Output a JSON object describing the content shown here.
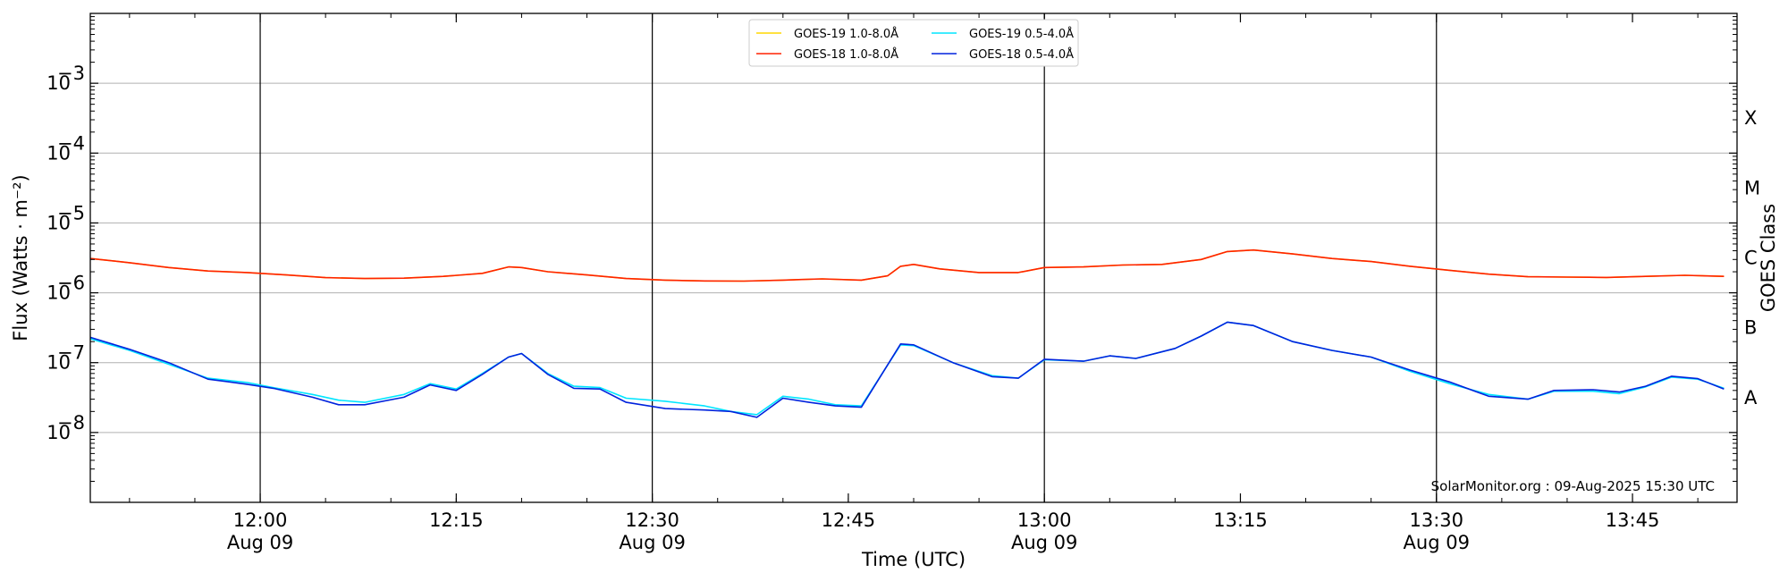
{
  "chart_data": {
    "type": "line",
    "xlabel": "Time (UTC)",
    "ylabel": "Flux (Watts · m⁻²)",
    "right_label": "GOES Class",
    "y_scale": "log",
    "ylim": [
      1e-09,
      0.01
    ],
    "xlim": [
      "11:47",
      "13:53"
    ],
    "grid": "horizontal",
    "legend_position": "top-center",
    "credit": "SolarMonitor.org : 09-Aug-2025 15:30 UTC",
    "x_ticks": [
      {
        "time": "12:00",
        "label": "12:00",
        "sublabel": "Aug 09",
        "major": true
      },
      {
        "time": "12:15",
        "label": "12:15",
        "sublabel": "",
        "major": false
      },
      {
        "time": "12:30",
        "label": "12:30",
        "sublabel": "Aug 09",
        "major": true
      },
      {
        "time": "12:45",
        "label": "12:45",
        "sublabel": "",
        "major": false
      },
      {
        "time": "13:00",
        "label": "13:00",
        "sublabel": "Aug 09",
        "major": true
      },
      {
        "time": "13:15",
        "label": "13:15",
        "sublabel": "",
        "major": false
      },
      {
        "time": "13:30",
        "label": "13:30",
        "sublabel": "Aug 09",
        "major": true
      },
      {
        "time": "13:45",
        "label": "13:45",
        "sublabel": "",
        "major": false
      }
    ],
    "y_ticks": [
      {
        "value": 1e-08,
        "base": "10",
        "exp": "−8"
      },
      {
        "value": 1e-07,
        "base": "10",
        "exp": "−7"
      },
      {
        "value": 1e-06,
        "base": "10",
        "exp": "−6"
      },
      {
        "value": 1e-05,
        "base": "10",
        "exp": "−5"
      },
      {
        "value": 0.0001,
        "base": "10",
        "exp": "−4"
      },
      {
        "value": 0.001,
        "base": "10",
        "exp": "−3"
      }
    ],
    "class_labels": [
      {
        "label": "A",
        "value": 3.16e-08
      },
      {
        "label": "B",
        "value": 3.16e-07
      },
      {
        "label": "C",
        "value": 3.16e-06
      },
      {
        "label": "M",
        "value": 3.16e-05
      },
      {
        "label": "X",
        "value": 0.000316
      }
    ],
    "legend": [
      {
        "name": "GOES-19 1.0-8.0Å",
        "color": "#ffd700"
      },
      {
        "name": "GOES-19 0.5-4.0Å",
        "color": "#00e5ff"
      },
      {
        "name": "GOES-18 1.0-8.0Å",
        "color": "#ff2200"
      },
      {
        "name": "GOES-18 0.5-4.0Å",
        "color": "#0022dd"
      }
    ],
    "series": [
      {
        "name": "GOES-19 1.0-8.0Å",
        "color": "#ffd700",
        "points": [
          [
            "11:47",
            3.1e-06
          ],
          [
            "11:50",
            2.7e-06
          ],
          [
            "11:53",
            2.3e-06
          ],
          [
            "11:56",
            2.05e-06
          ],
          [
            "11:59",
            1.95e-06
          ],
          [
            "12:02",
            1.8e-06
          ],
          [
            "12:05",
            1.65e-06
          ],
          [
            "12:08",
            1.6e-06
          ],
          [
            "12:11",
            1.62e-06
          ],
          [
            "12:14",
            1.72e-06
          ],
          [
            "12:17",
            1.9e-06
          ],
          [
            "12:19",
            2.35e-06
          ],
          [
            "12:20",
            2.3e-06
          ],
          [
            "12:22",
            2e-06
          ],
          [
            "12:25",
            1.8e-06
          ],
          [
            "12:28",
            1.6e-06
          ],
          [
            "12:31",
            1.52e-06
          ],
          [
            "12:34",
            1.48e-06
          ],
          [
            "12:37",
            1.47e-06
          ],
          [
            "12:40",
            1.52e-06
          ],
          [
            "12:43",
            1.58e-06
          ],
          [
            "12:46",
            1.52e-06
          ],
          [
            "12:48",
            1.75e-06
          ],
          [
            "12:49",
            2.4e-06
          ],
          [
            "12:50",
            2.55e-06
          ],
          [
            "12:52",
            2.2e-06
          ],
          [
            "12:55",
            1.95e-06
          ],
          [
            "12:58",
            1.95e-06
          ],
          [
            "13:00",
            2.3e-06
          ],
          [
            "13:03",
            2.35e-06
          ],
          [
            "13:06",
            2.5e-06
          ],
          [
            "13:09",
            2.55e-06
          ],
          [
            "13:12",
            3e-06
          ],
          [
            "13:14",
            3.9e-06
          ],
          [
            "13:16",
            4.1e-06
          ],
          [
            "13:19",
            3.6e-06
          ],
          [
            "13:22",
            3.1e-06
          ],
          [
            "13:25",
            2.8e-06
          ],
          [
            "13:28",
            2.4e-06
          ],
          [
            "13:31",
            2.1e-06
          ],
          [
            "13:34",
            1.85e-06
          ],
          [
            "13:37",
            1.7e-06
          ],
          [
            "13:40",
            1.68e-06
          ],
          [
            "13:43",
            1.66e-06
          ],
          [
            "13:46",
            1.72e-06
          ],
          [
            "13:49",
            1.78e-06
          ],
          [
            "13:52",
            1.72e-06
          ]
        ]
      },
      {
        "name": "GOES-18 1.0-8.0Å",
        "color": "#ff2200",
        "points": [
          [
            "11:47",
            3.1e-06
          ],
          [
            "11:50",
            2.7e-06
          ],
          [
            "11:53",
            2.3e-06
          ],
          [
            "11:56",
            2.05e-06
          ],
          [
            "11:59",
            1.95e-06
          ],
          [
            "12:02",
            1.8e-06
          ],
          [
            "12:05",
            1.65e-06
          ],
          [
            "12:08",
            1.6e-06
          ],
          [
            "12:11",
            1.62e-06
          ],
          [
            "12:14",
            1.72e-06
          ],
          [
            "12:17",
            1.9e-06
          ],
          [
            "12:19",
            2.35e-06
          ],
          [
            "12:20",
            2.3e-06
          ],
          [
            "12:22",
            2e-06
          ],
          [
            "12:25",
            1.8e-06
          ],
          [
            "12:28",
            1.6e-06
          ],
          [
            "12:31",
            1.52e-06
          ],
          [
            "12:34",
            1.48e-06
          ],
          [
            "12:37",
            1.47e-06
          ],
          [
            "12:40",
            1.52e-06
          ],
          [
            "12:43",
            1.58e-06
          ],
          [
            "12:46",
            1.52e-06
          ],
          [
            "12:48",
            1.75e-06
          ],
          [
            "12:49",
            2.4e-06
          ],
          [
            "12:50",
            2.55e-06
          ],
          [
            "12:52",
            2.2e-06
          ],
          [
            "12:55",
            1.95e-06
          ],
          [
            "12:58",
            1.95e-06
          ],
          [
            "13:00",
            2.3e-06
          ],
          [
            "13:03",
            2.35e-06
          ],
          [
            "13:06",
            2.5e-06
          ],
          [
            "13:09",
            2.55e-06
          ],
          [
            "13:12",
            3e-06
          ],
          [
            "13:14",
            3.9e-06
          ],
          [
            "13:16",
            4.1e-06
          ],
          [
            "13:19",
            3.6e-06
          ],
          [
            "13:22",
            3.1e-06
          ],
          [
            "13:25",
            2.8e-06
          ],
          [
            "13:28",
            2.4e-06
          ],
          [
            "13:31",
            2.1e-06
          ],
          [
            "13:34",
            1.85e-06
          ],
          [
            "13:37",
            1.7e-06
          ],
          [
            "13:40",
            1.68e-06
          ],
          [
            "13:43",
            1.66e-06
          ],
          [
            "13:46",
            1.72e-06
          ],
          [
            "13:49",
            1.78e-06
          ],
          [
            "13:52",
            1.72e-06
          ]
        ]
      },
      {
        "name": "GOES-19 0.5-4.0Å",
        "color": "#00e5ff",
        "points": [
          [
            "11:47",
            2.2e-07
          ],
          [
            "11:50",
            1.5e-07
          ],
          [
            "11:53",
            9.5e-08
          ],
          [
            "11:56",
            6e-08
          ],
          [
            "11:59",
            5.2e-08
          ],
          [
            "12:01",
            4.4e-08
          ],
          [
            "12:04",
            3.5e-08
          ],
          [
            "12:06",
            2.9e-08
          ],
          [
            "12:08",
            2.7e-08
          ],
          [
            "12:11",
            3.5e-08
          ],
          [
            "12:13",
            5e-08
          ],
          [
            "12:15",
            4.2e-08
          ],
          [
            "12:17",
            7e-08
          ],
          [
            "12:19",
            1.2e-07
          ],
          [
            "12:20",
            1.35e-07
          ],
          [
            "12:22",
            7e-08
          ],
          [
            "12:24",
            4.6e-08
          ],
          [
            "12:26",
            4.4e-08
          ],
          [
            "12:28",
            3.1e-08
          ],
          [
            "12:31",
            2.8e-08
          ],
          [
            "12:34",
            2.4e-08
          ],
          [
            "12:36",
            2e-08
          ],
          [
            "12:38",
            1.8e-08
          ],
          [
            "12:40",
            3.3e-08
          ],
          [
            "12:42",
            3e-08
          ],
          [
            "12:44",
            2.5e-08
          ],
          [
            "12:46",
            2.4e-08
          ],
          [
            "12:49",
            1.8e-07
          ],
          [
            "12:50",
            1.75e-07
          ],
          [
            "12:53",
            1e-07
          ],
          [
            "12:56",
            6.5e-08
          ],
          [
            "12:58",
            6e-08
          ],
          [
            "13:00",
            1.1e-07
          ],
          [
            "13:03",
            1.05e-07
          ],
          [
            "13:05",
            1.25e-07
          ],
          [
            "13:07",
            1.15e-07
          ],
          [
            "13:10",
            1.6e-07
          ],
          [
            "13:12",
            2.4e-07
          ],
          [
            "13:14",
            3.8e-07
          ],
          [
            "13:16",
            3.4e-07
          ],
          [
            "13:19",
            2e-07
          ],
          [
            "13:22",
            1.5e-07
          ],
          [
            "13:25",
            1.2e-07
          ],
          [
            "13:28",
            7.5e-08
          ],
          [
            "13:31",
            5e-08
          ],
          [
            "13:34",
            3.5e-08
          ],
          [
            "13:37",
            3e-08
          ],
          [
            "13:39",
            3.9e-08
          ],
          [
            "13:42",
            3.9e-08
          ],
          [
            "13:44",
            3.6e-08
          ],
          [
            "13:46",
            4.5e-08
          ],
          [
            "13:48",
            6.2e-08
          ],
          [
            "13:50",
            5.8e-08
          ],
          [
            "13:52",
            4.3e-08
          ]
        ]
      },
      {
        "name": "GOES-18 0.5-4.0Å",
        "color": "#0022dd",
        "points": [
          [
            "11:47",
            2.3e-07
          ],
          [
            "11:50",
            1.55e-07
          ],
          [
            "11:53",
            1e-07
          ],
          [
            "11:56",
            5.8e-08
          ],
          [
            "11:59",
            4.9e-08
          ],
          [
            "12:01",
            4.3e-08
          ],
          [
            "12:04",
            3.2e-08
          ],
          [
            "12:06",
            2.5e-08
          ],
          [
            "12:08",
            2.5e-08
          ],
          [
            "12:11",
            3.2e-08
          ],
          [
            "12:13",
            4.8e-08
          ],
          [
            "12:15",
            4e-08
          ],
          [
            "12:17",
            6.8e-08
          ],
          [
            "12:19",
            1.2e-07
          ],
          [
            "12:20",
            1.35e-07
          ],
          [
            "12:22",
            6.8e-08
          ],
          [
            "12:24",
            4.3e-08
          ],
          [
            "12:26",
            4.2e-08
          ],
          [
            "12:28",
            2.7e-08
          ],
          [
            "12:31",
            2.2e-08
          ],
          [
            "12:34",
            2.1e-08
          ],
          [
            "12:36",
            2e-08
          ],
          [
            "12:38",
            1.65e-08
          ],
          [
            "12:40",
            3.1e-08
          ],
          [
            "12:42",
            2.7e-08
          ],
          [
            "12:44",
            2.4e-08
          ],
          [
            "12:46",
            2.3e-08
          ],
          [
            "12:49",
            1.85e-07
          ],
          [
            "12:50",
            1.8e-07
          ],
          [
            "12:53",
            1e-07
          ],
          [
            "12:56",
            6.3e-08
          ],
          [
            "12:58",
            6e-08
          ],
          [
            "13:00",
            1.12e-07
          ],
          [
            "13:03",
            1.05e-07
          ],
          [
            "13:05",
            1.25e-07
          ],
          [
            "13:07",
            1.15e-07
          ],
          [
            "13:10",
            1.6e-07
          ],
          [
            "13:12",
            2.4e-07
          ],
          [
            "13:14",
            3.8e-07
          ],
          [
            "13:16",
            3.4e-07
          ],
          [
            "13:19",
            2e-07
          ],
          [
            "13:22",
            1.5e-07
          ],
          [
            "13:25",
            1.2e-07
          ],
          [
            "13:28",
            7.8e-08
          ],
          [
            "13:31",
            5.3e-08
          ],
          [
            "13:34",
            3.3e-08
          ],
          [
            "13:37",
            3e-08
          ],
          [
            "13:39",
            4e-08
          ],
          [
            "13:42",
            4.1e-08
          ],
          [
            "13:44",
            3.8e-08
          ],
          [
            "13:46",
            4.6e-08
          ],
          [
            "13:48",
            6.4e-08
          ],
          [
            "13:50",
            5.9e-08
          ],
          [
            "13:52",
            4.2e-08
          ]
        ]
      }
    ]
  }
}
